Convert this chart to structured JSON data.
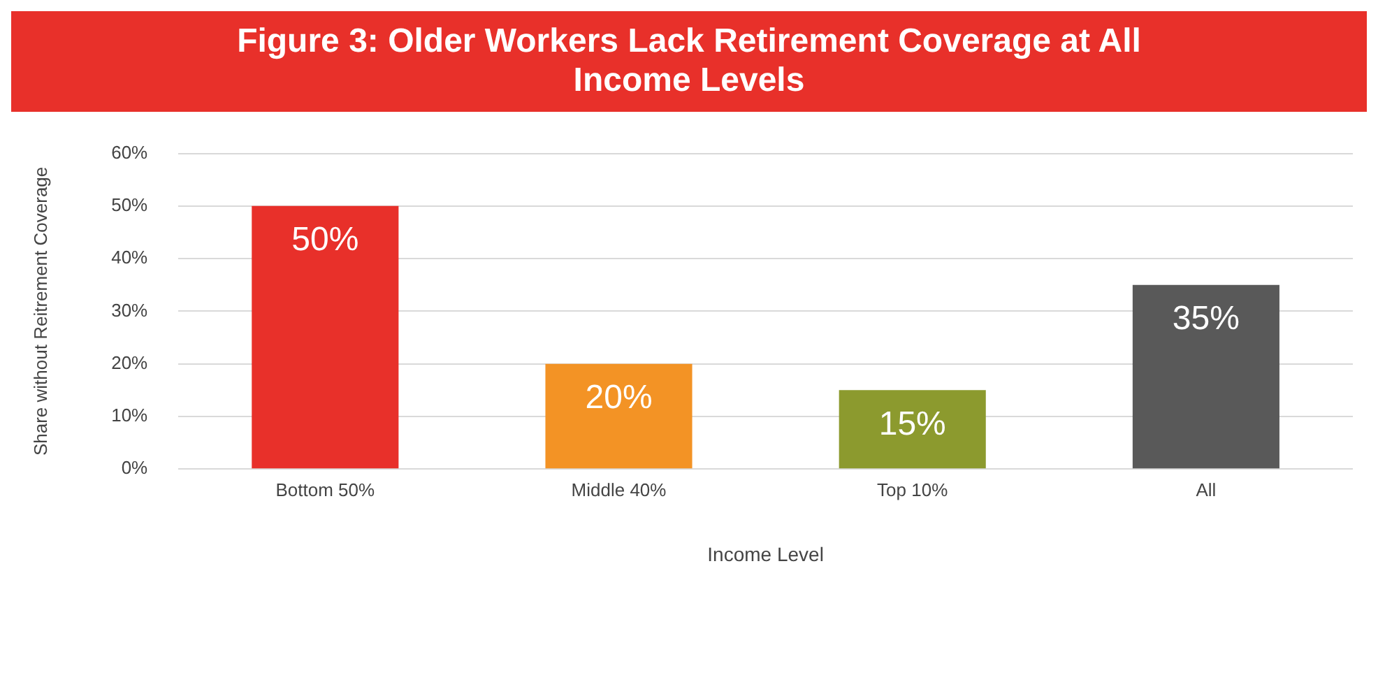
{
  "chart_data": {
    "type": "bar",
    "title": "Figure 3: Older Workers Lack Retirement Coverage at All Income Levels",
    "xlabel": "Income Level",
    "ylabel": "Share without Reitrement Coverage",
    "categories": [
      "Bottom 50%",
      "Middle 40%",
      "Top 10%",
      "All"
    ],
    "values": [
      50,
      20,
      15,
      35
    ],
    "colors": [
      "#e8302a",
      "#f39325",
      "#8c9a2e",
      "#595959"
    ],
    "value_labels": [
      "50%",
      "20%",
      "15%",
      "35%"
    ],
    "ylim": [
      0,
      60
    ],
    "yticks": [
      {
        "value": 0,
        "label": "0%"
      },
      {
        "value": 10,
        "label": "10%"
      },
      {
        "value": 20,
        "label": "20%"
      },
      {
        "value": 30,
        "label": "30%"
      },
      {
        "value": 40,
        "label": "40%"
      },
      {
        "value": 50,
        "label": "50%"
      },
      {
        "value": 60,
        "label": "60%"
      }
    ],
    "grid": "y",
    "legend": false
  }
}
